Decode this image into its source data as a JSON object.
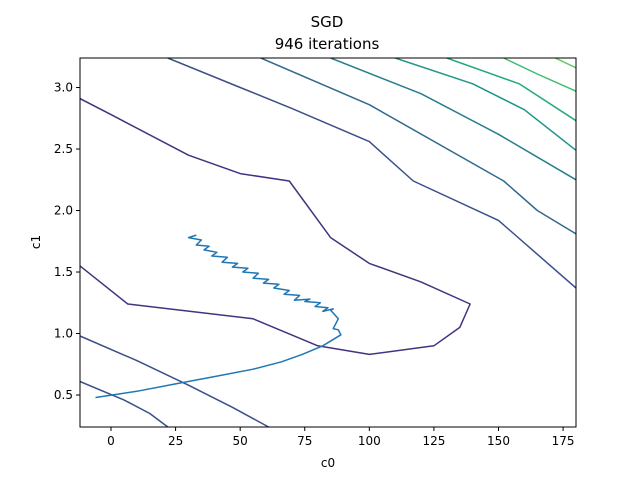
{
  "chart_data": {
    "type": "line",
    "title": "SGD",
    "subtitle": "946 iterations",
    "xlabel": "c0",
    "ylabel": "c1",
    "xlim": [
      -12,
      180
    ],
    "ylim": [
      0.24,
      3.24
    ],
    "x_ticks": [
      {
        "value": 0,
        "label": "0"
      },
      {
        "value": 25,
        "label": "25"
      },
      {
        "value": 50,
        "label": "50"
      },
      {
        "value": 75,
        "label": "75"
      },
      {
        "value": 100,
        "label": "100"
      },
      {
        "value": 125,
        "label": "125"
      },
      {
        "value": 150,
        "label": "150"
      },
      {
        "value": 175,
        "label": "175"
      }
    ],
    "y_ticks": [
      {
        "value": 0.5,
        "label": "0.5"
      },
      {
        "value": 1.0,
        "label": "1.0"
      },
      {
        "value": 1.5,
        "label": "1.5"
      },
      {
        "value": 2.0,
        "label": "2.0"
      },
      {
        "value": 2.5,
        "label": "2.5"
      },
      {
        "value": 3.0,
        "label": "3.0"
      }
    ],
    "grid": false,
    "contours": [
      {
        "color": "#46327e",
        "points": [
          [
            -12,
            1.55
          ],
          [
            6.5,
            1.24
          ],
          [
            55,
            1.12
          ],
          [
            80,
            0.9
          ],
          [
            100,
            0.83
          ],
          [
            125,
            0.9
          ],
          [
            135,
            1.05
          ],
          [
            139,
            1.24
          ],
          [
            120,
            1.42
          ],
          [
            100,
            1.57
          ],
          [
            85,
            1.78
          ],
          [
            69,
            2.24
          ],
          [
            50,
            2.3
          ],
          [
            30,
            2.45
          ],
          [
            0,
            2.78
          ],
          [
            -12,
            2.91
          ]
        ]
      },
      {
        "color": "#3c4f8a",
        "points": [
          [
            -12,
            0.98
          ],
          [
            10,
            0.78
          ],
          [
            30,
            0.58
          ],
          [
            47,
            0.4
          ],
          [
            61,
            0.24
          ]
        ]
      },
      {
        "color": "#3c4f8a",
        "points": [
          [
            22,
            3.24
          ],
          [
            50,
            3.0
          ],
          [
            70,
            2.83
          ],
          [
            100,
            2.56
          ],
          [
            117,
            2.24
          ],
          [
            150,
            1.92
          ],
          [
            180,
            1.37
          ]
        ]
      },
      {
        "color": "#3c4f8a",
        "points": [
          [
            -12,
            0.61
          ],
          [
            5,
            0.46
          ],
          [
            15,
            0.35
          ],
          [
            22,
            0.24
          ]
        ]
      },
      {
        "color": "#306a8e",
        "points": [
          [
            58,
            3.24
          ],
          [
            100,
            2.86
          ],
          [
            152,
            2.24
          ],
          [
            165,
            2.0
          ],
          [
            180,
            1.81
          ]
        ]
      },
      {
        "color": "#277f8e",
        "points": [
          [
            85,
            3.24
          ],
          [
            120,
            2.95
          ],
          [
            150,
            2.62
          ],
          [
            180,
            2.25
          ]
        ]
      },
      {
        "color": "#1f958b",
        "points": [
          [
            110,
            3.24
          ],
          [
            140,
            3.03
          ],
          [
            160,
            2.82
          ],
          [
            180,
            2.49
          ]
        ]
      },
      {
        "color": "#23a884",
        "points": [
          [
            130,
            3.24
          ],
          [
            158,
            3.03
          ],
          [
            180,
            2.73
          ]
        ]
      },
      {
        "color": "#3dbc74",
        "points": [
          [
            152,
            3.24
          ],
          [
            165,
            3.11
          ],
          [
            180,
            2.97
          ]
        ]
      },
      {
        "color": "#5ec962",
        "points": [
          [
            172,
            3.24
          ],
          [
            180,
            3.16
          ]
        ]
      }
    ],
    "series": [
      {
        "color": "#1f77b4",
        "points": [
          [
            -6,
            0.48
          ],
          [
            10,
            0.53
          ],
          [
            25,
            0.59
          ],
          [
            40,
            0.65
          ],
          [
            55,
            0.71
          ],
          [
            66,
            0.77
          ],
          [
            74,
            0.83
          ],
          [
            82,
            0.9
          ],
          [
            89,
            0.99
          ],
          [
            88,
            1.03
          ],
          [
            86,
            1.04
          ],
          [
            88,
            1.12
          ],
          [
            85,
            1.19
          ],
          [
            86,
            1.2
          ],
          [
            82,
            1.18
          ],
          [
            84,
            1.21
          ],
          [
            79,
            1.22
          ],
          [
            81,
            1.25
          ],
          [
            75,
            1.26
          ],
          [
            77,
            1.28
          ],
          [
            71,
            1.27
          ],
          [
            73,
            1.31
          ],
          [
            67,
            1.32
          ],
          [
            69,
            1.35
          ],
          [
            63,
            1.37
          ],
          [
            65,
            1.4
          ],
          [
            59,
            1.41
          ],
          [
            61,
            1.44
          ],
          [
            55,
            1.45
          ],
          [
            57,
            1.49
          ],
          [
            51,
            1.5
          ],
          [
            53,
            1.53
          ],
          [
            47,
            1.54
          ],
          [
            49,
            1.57
          ],
          [
            43,
            1.58
          ],
          [
            45,
            1.62
          ],
          [
            39,
            1.63
          ],
          [
            41,
            1.66
          ],
          [
            36,
            1.68
          ],
          [
            38,
            1.71
          ],
          [
            33,
            1.72
          ],
          [
            35,
            1.76
          ],
          [
            30,
            1.78
          ],
          [
            33,
            1.8
          ]
        ]
      }
    ]
  }
}
